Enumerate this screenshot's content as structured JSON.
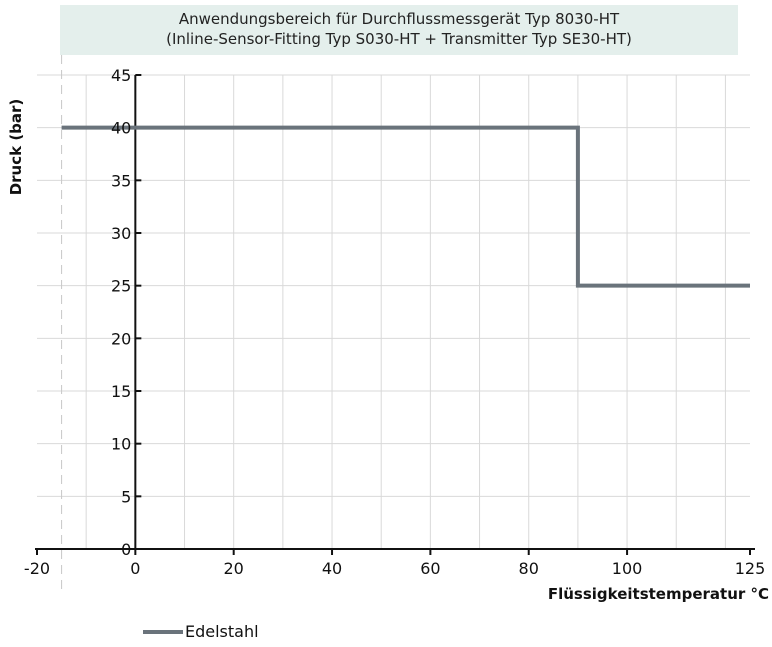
{
  "chart_data": {
    "type": "line",
    "title": "Anwendungsbereich für Durchflussmessgerät Typ 8030-HT",
    "subtitle": "(Inline-Sensor-Fitting Typ S030-HT + Transmitter Typ SE30-HT)",
    "xlabel": "Flüssigkeitstemperatur °C",
    "ylabel": "Druck (bar)",
    "x_ticks": [
      "-20",
      "0",
      "20",
      "40",
      "60",
      "80",
      "100",
      "125"
    ],
    "x_tick_values": [
      -20,
      0,
      20,
      40,
      60,
      80,
      100,
      125
    ],
    "y_ticks": [
      "0",
      "5",
      "10",
      "15",
      "20",
      "25",
      "30",
      "35",
      "40",
      "45"
    ],
    "y_tick_values": [
      0,
      5,
      10,
      15,
      20,
      25,
      30,
      35,
      40,
      45
    ],
    "xlim": [
      -20,
      125
    ],
    "ylim": [
      0,
      45
    ],
    "grid": true,
    "series": [
      {
        "name": "Edelstahl",
        "color": "#6a737b",
        "x": [
          -15,
          90,
          90,
          125
        ],
        "y": [
          40,
          40,
          25,
          25
        ]
      }
    ],
    "legend_position": "bottom-left"
  }
}
